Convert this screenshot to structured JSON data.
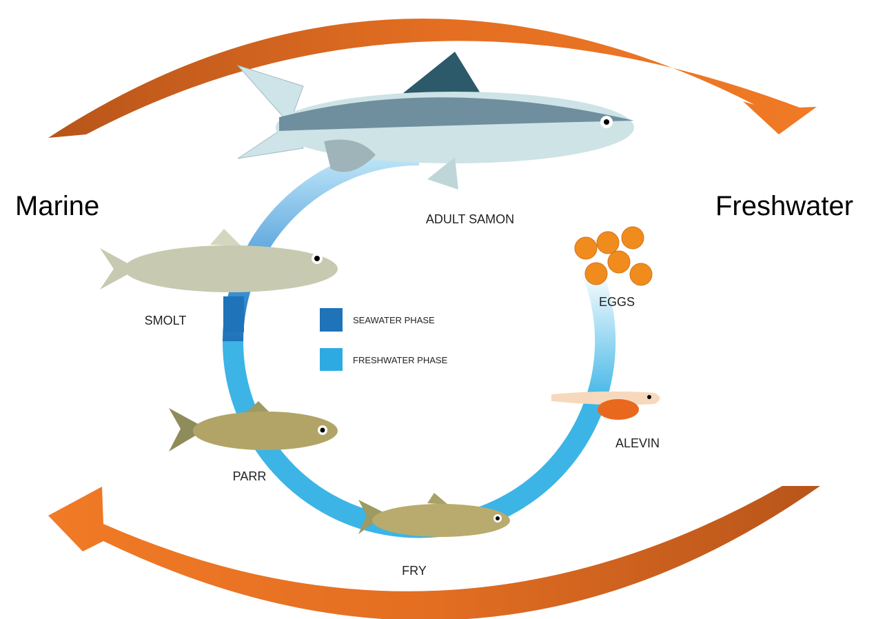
{
  "sides": {
    "left": "Marine",
    "right": "Freshwater"
  },
  "stages": [
    {
      "label": "ADULT SAMON"
    },
    {
      "label": "SMOLT"
    },
    {
      "label": "PARR"
    },
    {
      "label": "FRY"
    },
    {
      "label": "ALEVIN"
    },
    {
      "label": "EGGS"
    }
  ],
  "legend": [
    {
      "label": "SEAWATER PHASE"
    },
    {
      "label": "FRESHWATER PHASE"
    }
  ]
}
